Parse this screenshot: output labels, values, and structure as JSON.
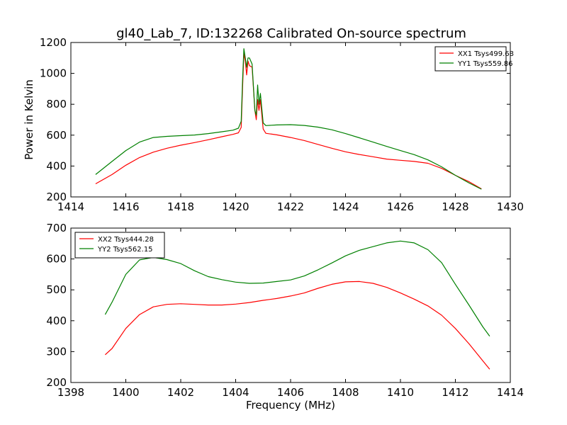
{
  "title": "gl40_Lab_7, ID:132268 Calibrated On-source spectrum",
  "colors": {
    "xx": "#ff0000",
    "yy": "#008000"
  },
  "chart_data": [
    {
      "type": "line",
      "ylabel": "Power in Kelvin",
      "xlabel": "",
      "xlim": [
        1414,
        1430
      ],
      "ylim": [
        200,
        1200
      ],
      "xticks": [
        1414,
        1416,
        1418,
        1420,
        1422,
        1424,
        1426,
        1428,
        1430
      ],
      "yticks": [
        200,
        400,
        600,
        800,
        1000,
        1200
      ],
      "legend_loc": "upper right",
      "series": [
        {
          "name": "XX1 Tsys499.68",
          "color": "#ff0000",
          "points": [
            [
              1414.9,
              285
            ],
            [
              1415.5,
              345
            ],
            [
              1416.0,
              405
            ],
            [
              1416.5,
              455
            ],
            [
              1417.0,
              490
            ],
            [
              1417.5,
              515
            ],
            [
              1418.0,
              535
            ],
            [
              1418.5,
              552
            ],
            [
              1419.0,
              570
            ],
            [
              1419.5,
              590
            ],
            [
              1419.9,
              605
            ],
            [
              1420.1,
              615
            ],
            [
              1420.2,
              650
            ],
            [
              1420.25,
              900
            ],
            [
              1420.3,
              1130
            ],
            [
              1420.35,
              1080
            ],
            [
              1420.4,
              990
            ],
            [
              1420.45,
              1080
            ],
            [
              1420.5,
              1050
            ],
            [
              1420.6,
              1040
            ],
            [
              1420.7,
              760
            ],
            [
              1420.75,
              700
            ],
            [
              1420.8,
              830
            ],
            [
              1420.85,
              760
            ],
            [
              1420.9,
              830
            ],
            [
              1421.0,
              640
            ],
            [
              1421.1,
              612
            ],
            [
              1421.5,
              602
            ],
            [
              1422.0,
              585
            ],
            [
              1422.5,
              565
            ],
            [
              1423.0,
              540
            ],
            [
              1423.5,
              515
            ],
            [
              1424.0,
              492
            ],
            [
              1424.5,
              475
            ],
            [
              1425.0,
              460
            ],
            [
              1425.5,
              445
            ],
            [
              1426.0,
              437
            ],
            [
              1426.5,
              430
            ],
            [
              1427.0,
              418
            ],
            [
              1427.5,
              385
            ],
            [
              1428.0,
              340
            ],
            [
              1428.5,
              298
            ],
            [
              1428.95,
              252
            ]
          ]
        },
        {
          "name": "YY1 Tsys559.86",
          "color": "#008000",
          "points": [
            [
              1414.9,
              345
            ],
            [
              1415.5,
              430
            ],
            [
              1416.0,
              500
            ],
            [
              1416.5,
              555
            ],
            [
              1417.0,
              585
            ],
            [
              1417.5,
              592
            ],
            [
              1418.0,
              597
            ],
            [
              1418.5,
              601
            ],
            [
              1419.0,
              610
            ],
            [
              1419.5,
              622
            ],
            [
              1419.9,
              632
            ],
            [
              1420.1,
              645
            ],
            [
              1420.2,
              690
            ],
            [
              1420.25,
              950
            ],
            [
              1420.3,
              1160
            ],
            [
              1420.35,
              1100
            ],
            [
              1420.4,
              1040
            ],
            [
              1420.45,
              1100
            ],
            [
              1420.5,
              1100
            ],
            [
              1420.6,
              1060
            ],
            [
              1420.7,
              760
            ],
            [
              1420.75,
              730
            ],
            [
              1420.8,
              925
            ],
            [
              1420.85,
              800
            ],
            [
              1420.9,
              870
            ],
            [
              1421.0,
              680
            ],
            [
              1421.1,
              662
            ],
            [
              1421.5,
              666
            ],
            [
              1422.0,
              668
            ],
            [
              1422.5,
              663
            ],
            [
              1423.0,
              652
            ],
            [
              1423.5,
              635
            ],
            [
              1424.0,
              610
            ],
            [
              1424.5,
              583
            ],
            [
              1425.0,
              555
            ],
            [
              1425.5,
              527
            ],
            [
              1426.0,
              500
            ],
            [
              1426.5,
              474
            ],
            [
              1427.0,
              440
            ],
            [
              1427.5,
              395
            ],
            [
              1428.0,
              340
            ],
            [
              1428.5,
              290
            ],
            [
              1428.95,
              250
            ]
          ]
        }
      ]
    },
    {
      "type": "line",
      "ylabel": "",
      "xlabel": "Frequency (MHz)",
      "xlim": [
        1398,
        1414
      ],
      "ylim": [
        200,
        700
      ],
      "xticks": [
        1398,
        1400,
        1402,
        1404,
        1406,
        1408,
        1410,
        1412,
        1414
      ],
      "yticks": [
        200,
        300,
        400,
        500,
        600,
        700
      ],
      "legend_loc": "upper left",
      "series": [
        {
          "name": "XX2 Tsys444.28",
          "color": "#ff0000",
          "points": [
            [
              1399.25,
              290
            ],
            [
              1399.5,
              310
            ],
            [
              1400.0,
              375
            ],
            [
              1400.5,
              420
            ],
            [
              1401.0,
              445
            ],
            [
              1401.5,
              453
            ],
            [
              1402.0,
              455
            ],
            [
              1402.5,
              453
            ],
            [
              1403.0,
              451
            ],
            [
              1403.5,
              451
            ],
            [
              1404.0,
              454
            ],
            [
              1404.5,
              459
            ],
            [
              1405.0,
              466
            ],
            [
              1405.5,
              472
            ],
            [
              1406.0,
              480
            ],
            [
              1406.5,
              490
            ],
            [
              1407.0,
              505
            ],
            [
              1407.5,
              518
            ],
            [
              1408.0,
              526
            ],
            [
              1408.5,
              527
            ],
            [
              1409.0,
              521
            ],
            [
              1409.5,
              508
            ],
            [
              1410.0,
              490
            ],
            [
              1410.5,
              470
            ],
            [
              1411.0,
              448
            ],
            [
              1411.5,
              418
            ],
            [
              1412.0,
              375
            ],
            [
              1412.5,
              325
            ],
            [
              1413.0,
              270
            ],
            [
              1413.25,
              243
            ]
          ]
        },
        {
          "name": "YY2 Tsys562.15",
          "color": "#008000",
          "points": [
            [
              1399.25,
              420
            ],
            [
              1399.5,
              460
            ],
            [
              1400.0,
              550
            ],
            [
              1400.5,
              597
            ],
            [
              1401.0,
              605
            ],
            [
              1401.5,
              598
            ],
            [
              1402.0,
              585
            ],
            [
              1402.5,
              562
            ],
            [
              1403.0,
              543
            ],
            [
              1403.5,
              533
            ],
            [
              1404.0,
              525
            ],
            [
              1404.5,
              521
            ],
            [
              1405.0,
              522
            ],
            [
              1405.5,
              527
            ],
            [
              1406.0,
              532
            ],
            [
              1406.5,
              545
            ],
            [
              1407.0,
              565
            ],
            [
              1407.5,
              587
            ],
            [
              1408.0,
              610
            ],
            [
              1408.5,
              628
            ],
            [
              1409.0,
              640
            ],
            [
              1409.5,
              652
            ],
            [
              1410.0,
              658
            ],
            [
              1410.5,
              652
            ],
            [
              1411.0,
              630
            ],
            [
              1411.5,
              588
            ],
            [
              1412.0,
              518
            ],
            [
              1412.5,
              450
            ],
            [
              1413.0,
              380
            ],
            [
              1413.25,
              350
            ]
          ]
        }
      ]
    }
  ]
}
